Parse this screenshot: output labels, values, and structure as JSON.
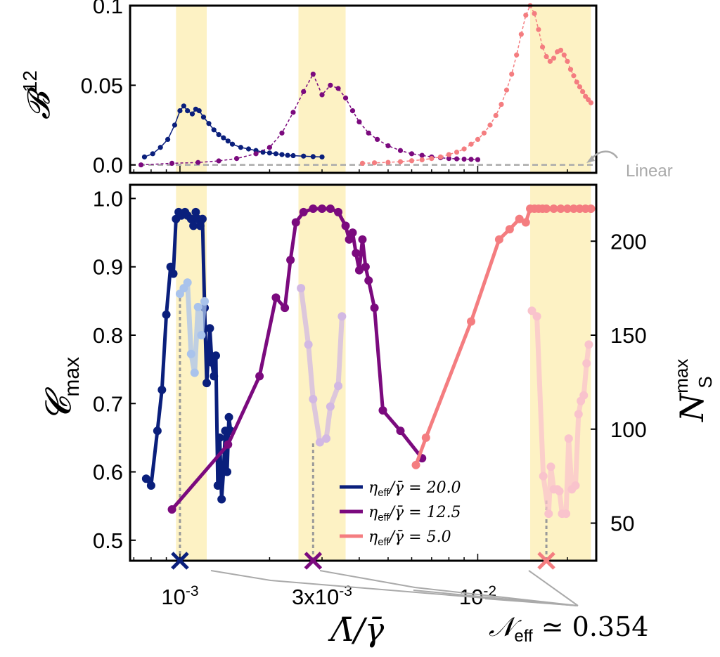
{
  "chart_data": [
    {
      "type": "line",
      "panel": "top",
      "ylabel": "𝓑",
      "ylabel_sup": "12",
      "ylim": [
        -0.005,
        0.1
      ],
      "yticks": [
        {
          "v": 0.0,
          "label": "0.0"
        },
        {
          "v": 0.05,
          "label": "0.05"
        },
        {
          "v": 0.1,
          "label": "0.1"
        }
      ],
      "xscale": "log",
      "xlim": [
        0.00068,
        0.025
      ],
      "highlight_bands": [
        [
          0.00097,
          0.00123
        ],
        [
          0.0025,
          0.0036
        ],
        [
          0.015,
          0.024
        ]
      ],
      "reference_line": {
        "y": 0.0,
        "label": "Linear",
        "color": "#aaaaaa"
      },
      "series": [
        {
          "key": "s20",
          "color": "#0a1f7c",
          "x": [
            0.00076,
            0.00081,
            0.00086,
            0.00091,
            0.00096,
            0.001,
            0.00103,
            0.00106,
            0.0011,
            0.00113,
            0.00116,
            0.0012,
            0.00125,
            0.0013,
            0.00135,
            0.0014,
            0.00145,
            0.0015,
            0.0016,
            0.0017,
            0.0018,
            0.0019,
            0.002,
            0.0021,
            0.0022,
            0.0023,
            0.0024,
            0.0026,
            0.0028,
            0.003
          ],
          "y": [
            0.005,
            0.007,
            0.011,
            0.016,
            0.025,
            0.034,
            0.037,
            0.034,
            0.032,
            0.035,
            0.034,
            0.03,
            0.026,
            0.022,
            0.019,
            0.017,
            0.015,
            0.013,
            0.011,
            0.01,
            0.009,
            0.008,
            0.0075,
            0.007,
            0.0065,
            0.006,
            0.0058,
            0.0055,
            0.0052,
            0.005
          ]
        },
        {
          "key": "s12",
          "color": "#7b0a7e",
          "x": [
            0.00074,
            0.00094,
            0.00115,
            0.00135,
            0.00155,
            0.0018,
            0.002,
            0.0022,
            0.0024,
            0.0026,
            0.0028,
            0.003,
            0.0032,
            0.0034,
            0.0036,
            0.0038,
            0.004,
            0.0043,
            0.0046,
            0.005,
            0.0055,
            0.006,
            0.0065,
            0.007,
            0.0075,
            0.008,
            0.0085,
            0.009,
            0.0095,
            0.01
          ],
          "y": [
            0.0,
            0.001,
            0.0015,
            0.0025,
            0.004,
            0.007,
            0.011,
            0.02,
            0.033,
            0.046,
            0.057,
            0.044,
            0.05,
            0.048,
            0.042,
            0.034,
            0.027,
            0.02,
            0.016,
            0.012,
            0.009,
            0.007,
            0.006,
            0.005,
            0.0045,
            0.004,
            0.0038,
            0.0036,
            0.0035,
            0.0033
          ]
        },
        {
          "key": "s5",
          "color": "#f47d80",
          "x": [
            0.0041,
            0.0045,
            0.005,
            0.0055,
            0.006,
            0.0065,
            0.007,
            0.0075,
            0.008,
            0.0085,
            0.009,
            0.0095,
            0.01,
            0.0105,
            0.011,
            0.0115,
            0.012,
            0.0125,
            0.013,
            0.0135,
            0.014,
            0.0145,
            0.015,
            0.0155,
            0.016,
            0.0165,
            0.017,
            0.0175,
            0.018,
            0.0185,
            0.019,
            0.0195,
            0.02,
            0.0205,
            0.021,
            0.0215,
            0.022,
            0.0225,
            0.023,
            0.0235,
            0.024
          ],
          "y": [
            0.001,
            0.0013,
            0.0016,
            0.002,
            0.0026,
            0.0032,
            0.004,
            0.005,
            0.0065,
            0.008,
            0.01,
            0.013,
            0.016,
            0.02,
            0.025,
            0.031,
            0.038,
            0.047,
            0.057,
            0.069,
            0.082,
            0.094,
            0.1,
            0.095,
            0.085,
            0.074,
            0.068,
            0.065,
            0.067,
            0.071,
            0.072,
            0.069,
            0.065,
            0.06,
            0.056,
            0.052,
            0.049,
            0.046,
            0.043,
            0.041,
            0.039
          ]
        }
      ]
    },
    {
      "type": "line",
      "panel": "bottom",
      "xlabel": "Λ̄/γ̄",
      "ylabel": "𝓒",
      "ylabel_sub": "max",
      "y2label": "N",
      "y2label_sup": "max",
      "y2label_sub": "S",
      "ylim": [
        0.47,
        1.02
      ],
      "yticks": [
        {
          "v": 0.5,
          "label": "0.5"
        },
        {
          "v": 0.6,
          "label": "0.6"
        },
        {
          "v": 0.7,
          "label": "0.7"
        },
        {
          "v": 0.8,
          "label": "0.8"
        },
        {
          "v": 0.9,
          "label": "0.9"
        },
        {
          "v": 1.0,
          "label": "1.0"
        }
      ],
      "y2lim": [
        30,
        230
      ],
      "y2ticks": [
        {
          "v": 50,
          "label": "50"
        },
        {
          "v": 100,
          "label": "100"
        },
        {
          "v": 150,
          "label": "150"
        },
        {
          "v": 200,
          "label": "200"
        }
      ],
      "xscale": "log",
      "xlim": [
        0.00068,
        0.025
      ],
      "xticks": [
        {
          "v": 0.001,
          "base": "10",
          "exp": "-3"
        },
        {
          "v": 0.003,
          "base": "3x10",
          "exp": "-3"
        },
        {
          "v": 0.01,
          "base": "10",
          "exp": "-2"
        }
      ],
      "highlight_bands": [
        [
          0.00097,
          0.00123
        ],
        [
          0.0025,
          0.0036
        ],
        [
          0.015,
          0.024
        ]
      ],
      "markers_x": [
        {
          "key": "s20",
          "x": 0.001
        },
        {
          "key": "s12",
          "x": 0.0028
        },
        {
          "key": "s5",
          "x": 0.017
        }
      ],
      "annotation": {
        "text": "𝒩",
        "sub": "eff",
        "rest": " ≃ 0.354"
      },
      "legend": {
        "position": "bottom-center",
        "entries": [
          {
            "key": "s20",
            "lhs": "η",
            "sub": "eff",
            "rhs": "/γ̄ = 20.0"
          },
          {
            "key": "s12",
            "lhs": "η",
            "sub": "eff",
            "rhs": "/γ̄ = 12.5"
          },
          {
            "key": "s5",
            "lhs": "η",
            "sub": "eff",
            "rhs": "/γ̄ = 5.0"
          }
        ]
      },
      "series": [
        {
          "key": "s20",
          "color": "#0a1f7c",
          "axis": "left",
          "x": [
            0.00077,
            0.0008,
            0.00084,
            0.00087,
            0.0009,
            0.00093,
            0.00095,
            0.00097,
            0.00099,
            0.00101,
            0.00104,
            0.00106,
            0.00109,
            0.00111,
            0.00113,
            0.00115,
            0.00117,
            0.00119,
            0.00121,
            0.00123,
            0.00126,
            0.00128,
            0.0013,
            0.00132,
            0.00134,
            0.00136,
            0.00138,
            0.0014,
            0.00142,
            0.00144,
            0.00146,
            0.00148
          ],
          "y": [
            0.59,
            0.58,
            0.66,
            0.72,
            0.83,
            0.9,
            0.89,
            0.97,
            0.98,
            0.975,
            0.98,
            0.975,
            0.97,
            0.96,
            0.98,
            0.97,
            0.96,
            0.97,
            0.84,
            0.73,
            0.81,
            0.76,
            0.74,
            0.77,
            0.58,
            0.65,
            0.56,
            0.6,
            0.66,
            0.6,
            0.68,
            0.66
          ]
        },
        {
          "key": "s20f",
          "color": "#a9c3ec",
          "axis": "right",
          "faded": true,
          "x": [
            0.001,
            0.00103,
            0.00106,
            0.00109,
            0.00112,
            0.00115,
            0.00118,
            0.00121
          ],
          "y": [
            172,
            175,
            178,
            140,
            130,
            165,
            150,
            168
          ]
        },
        {
          "key": "s12",
          "color": "#7b0a7e",
          "axis": "left",
          "x": [
            0.00094,
            0.00145,
            0.00185,
            0.0021,
            0.00225,
            0.00235,
            0.00245,
            0.0026,
            0.0028,
            0.003,
            0.0032,
            0.0034,
            0.0036,
            0.0037,
            0.0038,
            0.0039,
            0.004,
            0.0041,
            0.0042,
            0.0043,
            0.0045,
            0.0048,
            0.0055,
            0.0065
          ],
          "y": [
            0.545,
            0.64,
            0.74,
            0.855,
            0.84,
            0.91,
            0.965,
            0.98,
            0.985,
            0.985,
            0.985,
            0.98,
            0.96,
            0.94,
            0.95,
            0.92,
            0.895,
            0.94,
            0.9,
            0.88,
            0.84,
            0.69,
            0.66,
            0.62
          ]
        },
        {
          "key": "s12f",
          "color": "#d2b8e3",
          "axis": "right",
          "faded": true,
          "x": [
            0.00255,
            0.0027,
            0.0028,
            0.00295,
            0.0031,
            0.0032,
            0.0034,
            0.0035
          ],
          "y": [
            175,
            145,
            116,
            93,
            95,
            112,
            123,
            160
          ]
        },
        {
          "key": "s5",
          "color": "#f47d80",
          "axis": "left",
          "x": [
            0.0062,
            0.0067,
            0.0095,
            0.0118,
            0.0128,
            0.0138,
            0.0145,
            0.015,
            0.0155,
            0.016,
            0.0165,
            0.017,
            0.018,
            0.019,
            0.02,
            0.021,
            0.022,
            0.023,
            0.024
          ],
          "y": [
            0.61,
            0.65,
            0.82,
            0.94,
            0.955,
            0.97,
            0.965,
            0.985,
            0.985,
            0.985,
            0.985,
            0.985,
            0.985,
            0.985,
            0.985,
            0.985,
            0.985,
            0.985,
            0.985
          ]
        },
        {
          "key": "s5f",
          "color": "#f9c3cc",
          "axis": "right",
          "faded": true,
          "x": [
            0.0152,
            0.0158,
            0.0166,
            0.0173,
            0.0176,
            0.018,
            0.0185,
            0.0188,
            0.0192,
            0.0198,
            0.0202,
            0.0207,
            0.0213,
            0.0218,
            0.0222,
            0.0227,
            0.0232,
            0.0236
          ],
          "y": [
            163,
            160,
            75,
            55,
            80,
            68,
            68,
            67,
            55,
            55,
            95,
            68,
            70,
            108,
            115,
            118,
            135,
            145
          ]
        }
      ]
    }
  ]
}
